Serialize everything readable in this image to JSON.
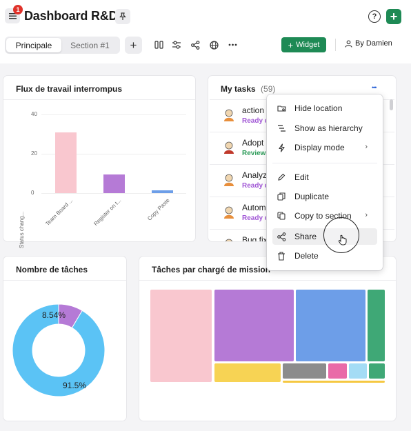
{
  "header": {
    "title": "Dashboard R&D",
    "notification_count": "1",
    "help_label": "?",
    "add_label": "+",
    "tabs": [
      {
        "label": "Principale",
        "active": true
      },
      {
        "label": "Section #1",
        "active": false
      }
    ],
    "add_section_label": "+",
    "toolbar_icons": [
      "columns-icon",
      "sliders-icon",
      "share-icon",
      "globe-icon",
      "more-icon"
    ],
    "widget_button": "Widget",
    "by_label": "By Damien"
  },
  "flux_card": {
    "title": "Flux de travail interrompus",
    "chart_data": {
      "type": "bar",
      "ylabel": "Status chang...",
      "ylim": [
        0,
        40
      ],
      "yticks": [
        "40",
        "20",
        "0"
      ],
      "categories": [
        "Team Board ...",
        "Register on t...",
        "Copy Paste"
      ],
      "values": [
        31,
        9.5,
        1.5
      ],
      "colors": [
        "#f9c7cf",
        "#b57ad6",
        "#6d9ee8"
      ]
    }
  },
  "tasks_card": {
    "title": "My tasks",
    "count": "(59)",
    "more_label": "•••",
    "tasks": [
      {
        "name": "action f",
        "status": "Ready d",
        "status_color": "#a259d6"
      },
      {
        "name": "Adopt a",
        "status": "Review",
        "status_color": "#2e9c5a"
      },
      {
        "name": "Analyze",
        "status": "Ready d",
        "status_color": "#a259d6"
      },
      {
        "name": "Automa",
        "status": "Ready d",
        "status_color": "#a259d6"
      },
      {
        "name": "Bug fix",
        "status": "",
        "status_color": "#a259d6"
      }
    ]
  },
  "context_menu": {
    "items": [
      {
        "label": "Hide location",
        "icon": "hide-location-icon"
      },
      {
        "label": "Show as hierarchy",
        "icon": "hierarchy-icon"
      },
      {
        "label": "Display mode",
        "icon": "lightning-icon",
        "submenu": true
      },
      {
        "label": "Edit",
        "icon": "pencil-icon"
      },
      {
        "label": "Duplicate",
        "icon": "duplicate-icon"
      },
      {
        "label": "Copy to section",
        "icon": "copy-icon",
        "submenu": true
      },
      {
        "label": "Share",
        "icon": "share-icon",
        "hover": true
      },
      {
        "label": "Delete",
        "icon": "trash-icon"
      }
    ]
  },
  "nombre_card": {
    "title": "Nombre de tâches",
    "chart_data": {
      "type": "pie",
      "donut": true,
      "labels": [
        "8.54%",
        "91.5%"
      ],
      "values": [
        8.54,
        91.46
      ],
      "colors": [
        "#b57ad6",
        "#5bc3f5"
      ]
    }
  },
  "taches_card": {
    "title": "Tâches par chargé de mission",
    "chart_data": {
      "type": "treemap",
      "colors": [
        "#f9c7cf",
        "#b57ad6",
        "#6d9ee8",
        "#3fa876",
        "#f7d354",
        "#8c8c8c",
        "#e96aa8",
        "#a4dcf5",
        "#3fa876",
        "#f5c842"
      ]
    }
  }
}
